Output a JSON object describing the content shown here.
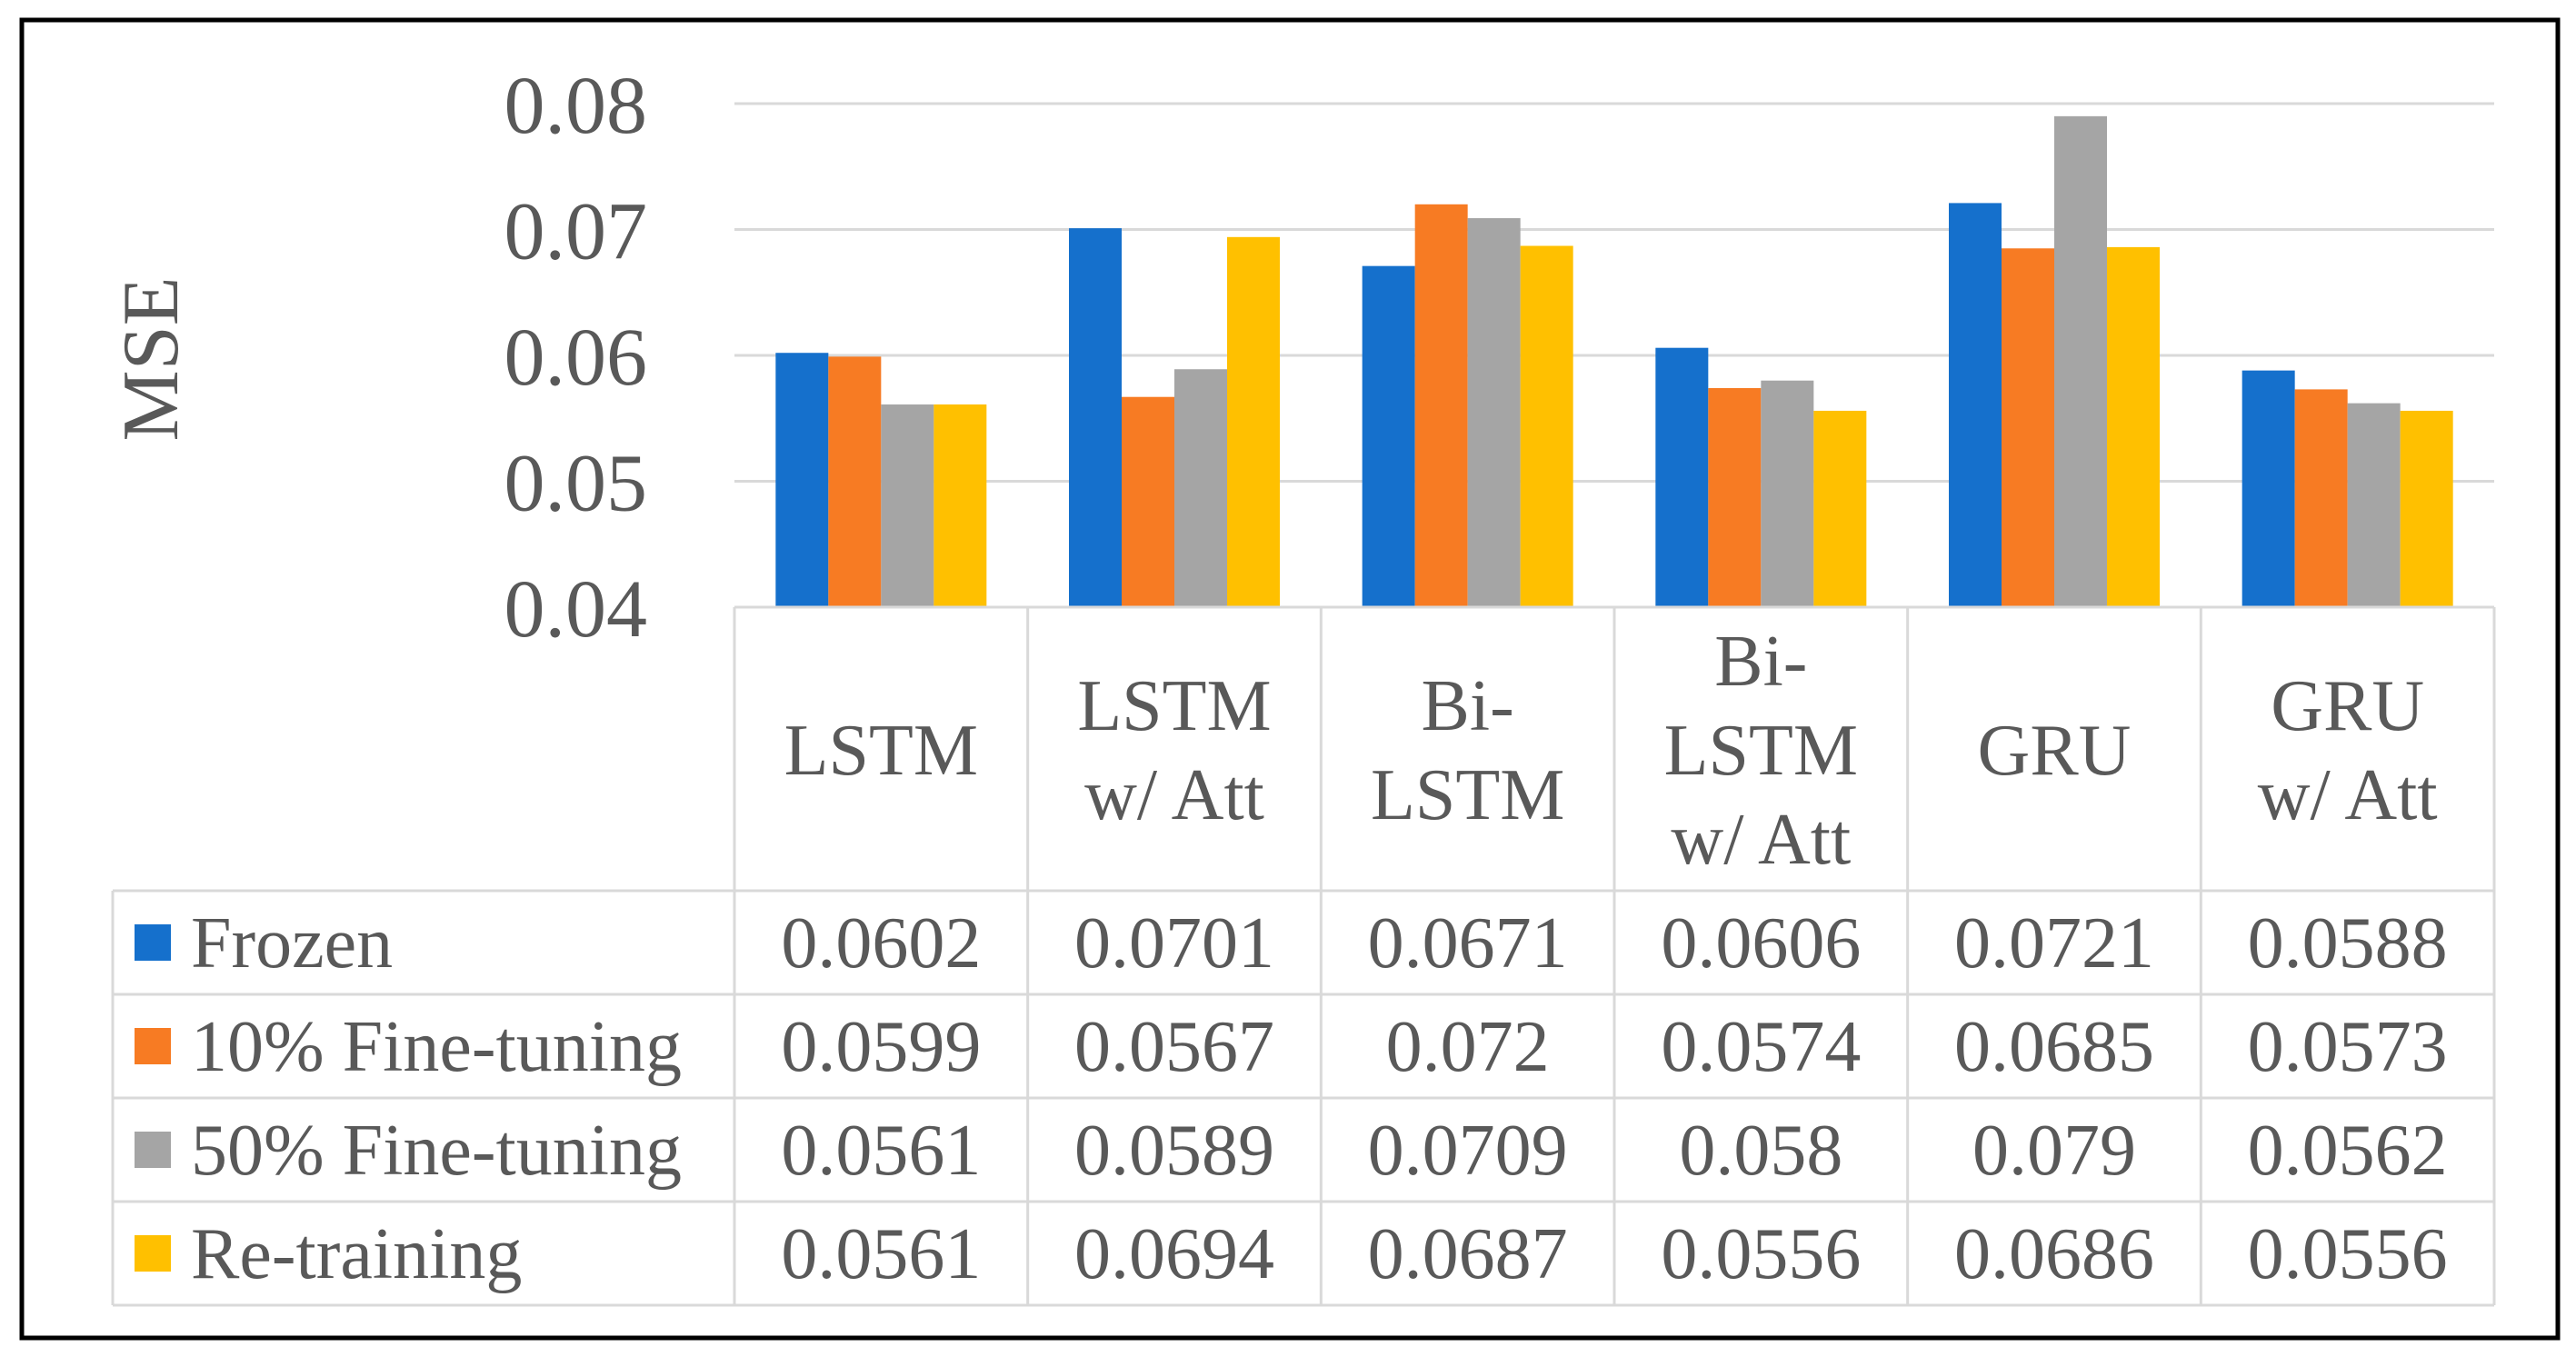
{
  "colors": {
    "Frozen": "#1570CC",
    "10% Fine-tuning": "#F77B23",
    "50% Fine-tuning": "#A5A5A5",
    "Re-training": "#FFC000",
    "gridline": "#D9D9D9",
    "text": "#595959",
    "frame": "#000000"
  },
  "chart_data": {
    "type": "bar",
    "ylabel": "MSE",
    "ylim": [
      0.04,
      0.08
    ],
    "yticks": [
      "0.04",
      "0.05",
      "0.06",
      "0.07",
      "0.08"
    ],
    "grid": true,
    "legend": "data-table-left",
    "categories": [
      [
        "LSTM"
      ],
      [
        "LSTM",
        "w/ Att"
      ],
      [
        "Bi-",
        "LSTM"
      ],
      [
        "Bi-",
        "LSTM",
        "w/ Att"
      ],
      [
        "GRU"
      ],
      [
        "GRU",
        "w/ Att"
      ]
    ],
    "series": [
      {
        "name": "Frozen",
        "values": [
          0.0602,
          0.0701,
          0.0671,
          0.0606,
          0.0721,
          0.0588
        ],
        "labels": [
          "0.0602",
          "0.0701",
          "0.0671",
          "0.0606",
          "0.0721",
          "0.0588"
        ]
      },
      {
        "name": "10% Fine-tuning",
        "values": [
          0.0599,
          0.0567,
          0.072,
          0.0574,
          0.0685,
          0.0573
        ],
        "labels": [
          "0.0599",
          "0.0567",
          "0.072",
          "0.0574",
          "0.0685",
          "0.0573"
        ]
      },
      {
        "name": "50% Fine-tuning",
        "values": [
          0.0561,
          0.0589,
          0.0709,
          0.058,
          0.079,
          0.0562
        ],
        "labels": [
          "0.0561",
          "0.0589",
          "0.0709",
          "0.058",
          "0.079",
          "0.0562"
        ]
      },
      {
        "name": "Re-training",
        "values": [
          0.0561,
          0.0694,
          0.0687,
          0.0556,
          0.0686,
          0.0556
        ],
        "labels": [
          "0.0561",
          "0.0694",
          "0.0687",
          "0.0556",
          "0.0686",
          "0.0556"
        ]
      }
    ]
  }
}
